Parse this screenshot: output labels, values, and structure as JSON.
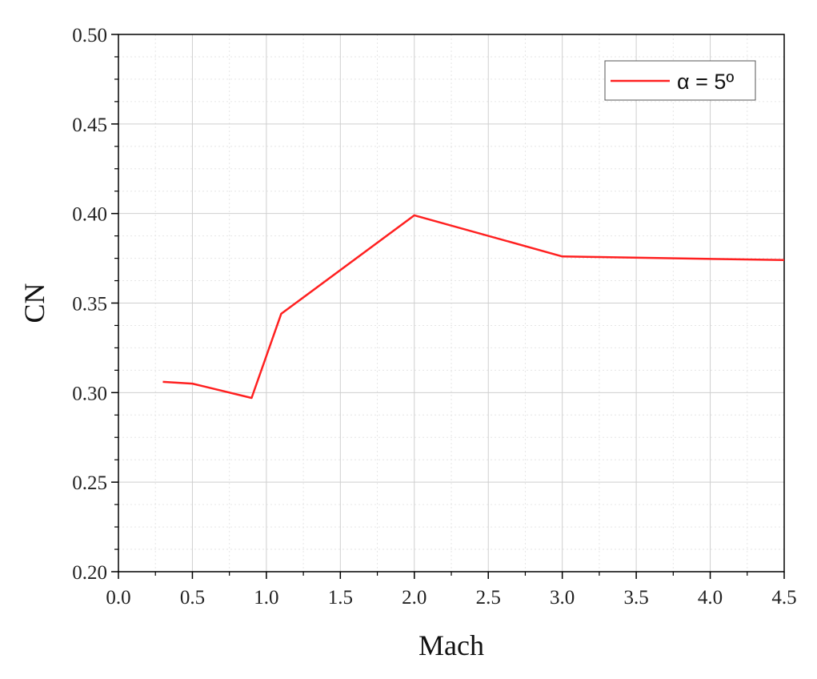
{
  "chart_data": {
    "type": "line",
    "xlabel": "Mach",
    "ylabel": "CN",
    "xlim": [
      0.0,
      4.5
    ],
    "ylim": [
      0.2,
      0.5
    ],
    "xticks": [
      "0.0",
      "0.5",
      "1.0",
      "1.5",
      "2.0",
      "2.5",
      "3.0",
      "3.5",
      "4.0",
      "4.5"
    ],
    "yticks": [
      "0.20",
      "0.25",
      "0.30",
      "0.35",
      "0.40",
      "0.45",
      "0.50"
    ],
    "grid": true,
    "legend_position": "top-right",
    "series": [
      {
        "name": "α = 5º",
        "color": "#ff2020",
        "x": [
          0.3,
          0.5,
          0.9,
          1.1,
          2.0,
          3.0,
          4.5
        ],
        "y": [
          0.306,
          0.305,
          0.297,
          0.344,
          0.399,
          0.376,
          0.374
        ]
      }
    ]
  }
}
